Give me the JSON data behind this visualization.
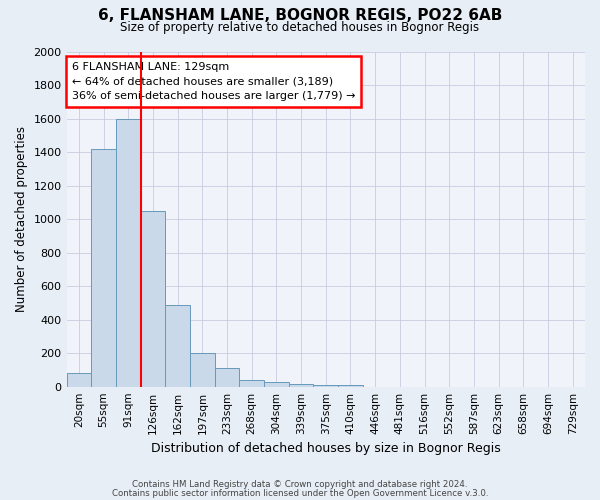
{
  "title1": "6, FLANSHAM LANE, BOGNOR REGIS, PO22 6AB",
  "title2": "Size of property relative to detached houses in Bognor Regis",
  "xlabel": "Distribution of detached houses by size in Bognor Regis",
  "ylabel": "Number of detached properties",
  "bin_labels": [
    "20sqm",
    "55sqm",
    "91sqm",
    "126sqm",
    "162sqm",
    "197sqm",
    "233sqm",
    "268sqm",
    "304sqm",
    "339sqm",
    "375sqm",
    "410sqm",
    "446sqm",
    "481sqm",
    "516sqm",
    "552sqm",
    "587sqm",
    "623sqm",
    "658sqm",
    "694sqm",
    "729sqm"
  ],
  "bin_values": [
    80,
    1420,
    1600,
    1050,
    490,
    200,
    110,
    40,
    25,
    15,
    10,
    10,
    0,
    0,
    0,
    0,
    0,
    0,
    0,
    0,
    0
  ],
  "bar_color": "#c9d9ea",
  "bar_edge_color": "#6699bb",
  "red_line_bin": 3,
  "ylim": [
    0,
    2000
  ],
  "yticks": [
    0,
    200,
    400,
    600,
    800,
    1000,
    1200,
    1400,
    1600,
    1800,
    2000
  ],
  "annotation_line1": "6 FLANSHAM LANE: 129sqm",
  "annotation_line2": "← 64% of detached houses are smaller (3,189)",
  "annotation_line3": "36% of semi-detached houses are larger (1,779) →",
  "footer1": "Contains HM Land Registry data © Crown copyright and database right 2024.",
  "footer2": "Contains public sector information licensed under the Open Government Licence v.3.0.",
  "bg_color": "#e8eef6",
  "plot_bg_color": "#f0f4fa",
  "grid_color": "#c8cce0"
}
